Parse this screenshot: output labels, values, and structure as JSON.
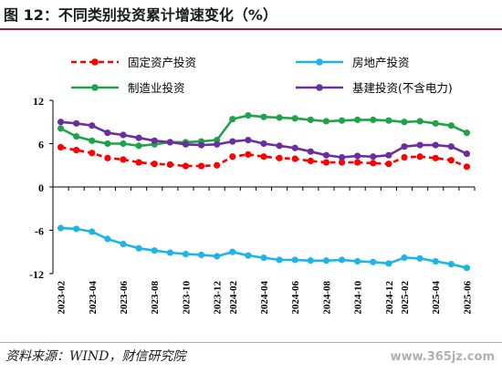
{
  "figure": {
    "title": "图 12：不同类别投资累计增速变化（%）",
    "source": "资料来源：WIND，财信研究院",
    "watermark": "www.365jz.com"
  },
  "chart_data": {
    "type": "line",
    "categories": [
      "2023-02",
      "2023-03",
      "2023-04",
      "2023-05",
      "2023-06",
      "2023-07",
      "2023-08",
      "2023-09",
      "2023-10",
      "2023-11",
      "2023-12",
      "2024-02",
      "2024-03",
      "2024-04",
      "2024-05",
      "2024-06",
      "2024-07",
      "2024-08",
      "2024-09",
      "2024-10",
      "2024-11",
      "2024-12",
      "2025-02",
      "2025-03",
      "2025-04",
      "2025-05",
      "2025-06"
    ],
    "tick_labels": [
      "2023-02",
      "2023-04",
      "2023-06",
      "2023-08",
      "2023-10",
      "2023-12",
      "2024-02",
      "2024-04",
      "2024-06",
      "2024-08",
      "2024-10",
      "2024-12",
      "2025-02",
      "2025-04",
      "2025-06"
    ],
    "yticks": [
      12,
      6,
      0,
      -6,
      -12
    ],
    "ylim": [
      -12,
      12
    ],
    "grid": false,
    "legend_position": "top",
    "series": [
      {
        "name": "固定资产投资",
        "color": "#ff0000",
        "dashed": true,
        "values": [
          5.5,
          5.1,
          4.7,
          4.0,
          3.8,
          3.4,
          3.2,
          3.1,
          2.9,
          2.9,
          3.0,
          4.2,
          4.5,
          4.2,
          4.0,
          3.9,
          3.6,
          3.4,
          3.4,
          3.4,
          3.3,
          3.2,
          4.1,
          4.2,
          4.0,
          3.7,
          2.8
        ]
      },
      {
        "name": "房地产投资",
        "color": "#1fb4e8",
        "dashed": false,
        "values": [
          -5.7,
          -5.8,
          -6.2,
          -7.2,
          -7.9,
          -8.5,
          -8.8,
          -9.1,
          -9.3,
          -9.4,
          -9.6,
          -9.0,
          -9.5,
          -9.8,
          -10.1,
          -10.1,
          -10.2,
          -10.2,
          -10.1,
          -10.3,
          -10.4,
          -10.6,
          -9.8,
          -9.9,
          -10.3,
          -10.7,
          -11.2
        ]
      },
      {
        "name": "制造业投资",
        "color": "#1ea34a",
        "dashed": false,
        "values": [
          8.1,
          7.0,
          6.4,
          6.0,
          6.0,
          5.7,
          5.9,
          6.2,
          6.2,
          6.3,
          6.5,
          9.4,
          9.9,
          9.7,
          9.6,
          9.5,
          9.3,
          9.1,
          9.2,
          9.3,
          9.3,
          9.2,
          9.0,
          9.1,
          8.8,
          8.5,
          7.5
        ]
      },
      {
        "name": "基建投资(不含电力)",
        "color": "#6a2ea0",
        "dashed": false,
        "values": [
          9.0,
          8.8,
          8.5,
          7.5,
          7.2,
          6.8,
          6.4,
          6.2,
          5.9,
          5.8,
          5.9,
          6.3,
          6.5,
          6.0,
          5.7,
          5.4,
          4.9,
          4.4,
          4.1,
          4.3,
          4.2,
          4.4,
          5.6,
          5.8,
          5.8,
          5.6,
          4.6
        ]
      }
    ]
  }
}
